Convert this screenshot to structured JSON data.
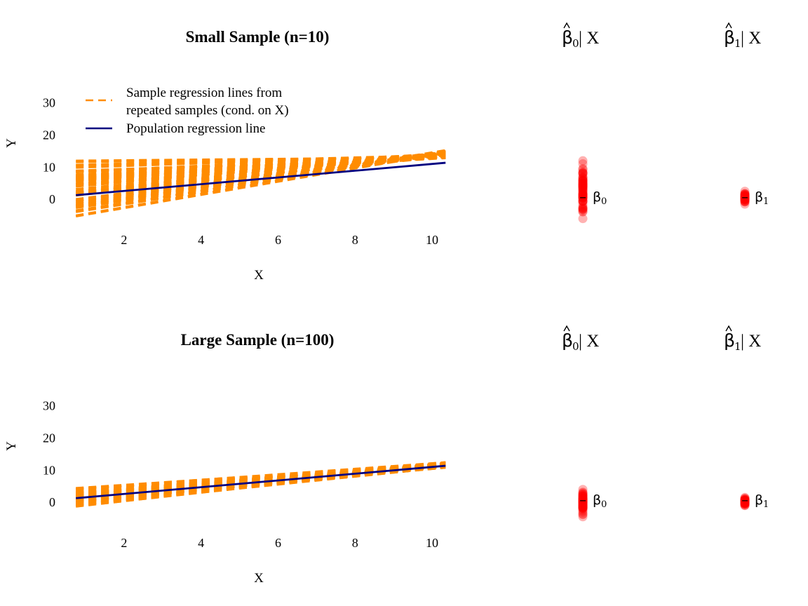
{
  "colors": {
    "sample_lines": "#FF8C00",
    "population_line": "#000080",
    "estimate_points": "#FF0000"
  },
  "chart_data": [
    {
      "type": "line",
      "title": "Small Sample (n=10)",
      "xlabel": "X",
      "ylabel": "Y",
      "xlim": [
        0.6,
        10.4
      ],
      "ylim": [
        -10,
        38
      ],
      "xticks": [
        2,
        4,
        6,
        8,
        10
      ],
      "yticks": [
        0,
        10,
        20,
        30
      ],
      "grid": false,
      "legend": {
        "placement": "top-left",
        "entries": [
          {
            "label_line1": "Sample regression lines from",
            "label_line2": "repeated samples (cond. on X)",
            "style": "dashed",
            "color": "#FF8C00"
          },
          {
            "label_line1": "Population regression line",
            "style": "solid",
            "color": "#000080"
          }
        ]
      },
      "sample_size": 10,
      "population_line": {
        "intercept": 0.5,
        "slope": 1.05
      },
      "sample_x_points": [
        0.75,
        1.15,
        1.55,
        1.95,
        2.35,
        2.75,
        3.15,
        3.55,
        4.0,
        4.45,
        4.85,
        5.25,
        5.65,
        6.05,
        6.45,
        6.85,
        7.25,
        7.65,
        8.05,
        8.5,
        8.9,
        9.3,
        9.7,
        10.1
      ],
      "sample_lines": {
        "count": 60,
        "intercept_range": [
          -7,
          12
        ],
        "slope_range": [
          0.1,
          2.1
        ]
      }
    },
    {
      "type": "line",
      "title": "Large Sample (n=100)",
      "xlabel": "X",
      "ylabel": "Y",
      "xlim": [
        0.6,
        10.4
      ],
      "ylim": [
        -10,
        38
      ],
      "xticks": [
        2,
        4,
        6,
        8,
        10
      ],
      "yticks": [
        0,
        10,
        20,
        30
      ],
      "grid": false,
      "sample_size": 100,
      "population_line": {
        "intercept": 0.5,
        "slope": 1.05
      },
      "sample_x_points": [
        0.75,
        1.15,
        1.55,
        1.95,
        2.35,
        2.75,
        3.15,
        3.55,
        4.0,
        4.45,
        4.85,
        5.25,
        5.65,
        6.05,
        6.45,
        6.85,
        7.25,
        7.65,
        8.05,
        8.5,
        8.9,
        9.3,
        9.7,
        10.1
      ],
      "sample_lines": {
        "count": 60,
        "intercept_range": [
          -2.5,
          4
        ],
        "slope_range": [
          0.75,
          1.35
        ]
      }
    },
    {
      "type": "scatter",
      "title_symbol": "β",
      "title_sub": "0",
      "title_suffix": " | X",
      "ylim": [
        -10,
        38
      ],
      "center_label": "β",
      "center_sub": "0",
      "center_value": 0.5,
      "estimates_range": [
        -6,
        12
      ],
      "panel": "small"
    },
    {
      "type": "scatter",
      "title_symbol": "β",
      "title_sub": "1",
      "title_suffix": " | X",
      "ylim": [
        -10,
        38
      ],
      "center_label": "β",
      "center_sub": "1",
      "center_value": 0.5,
      "estimates_range": [
        -1.5,
        2.5
      ],
      "panel": "small"
    },
    {
      "type": "scatter",
      "title_symbol": "β",
      "title_sub": "0",
      "title_suffix": " | X",
      "ylim": [
        -10,
        38
      ],
      "center_label": "β",
      "center_sub": "0",
      "center_value": 0.5,
      "estimates_range": [
        -4.5,
        4
      ],
      "panel": "large"
    },
    {
      "type": "scatter",
      "title_symbol": "β",
      "title_sub": "1",
      "title_suffix": " | X",
      "ylim": [
        -10,
        38
      ],
      "center_label": "β",
      "center_sub": "1",
      "center_value": 0.5,
      "estimates_range": [
        -1,
        1.5
      ],
      "panel": "large"
    }
  ]
}
